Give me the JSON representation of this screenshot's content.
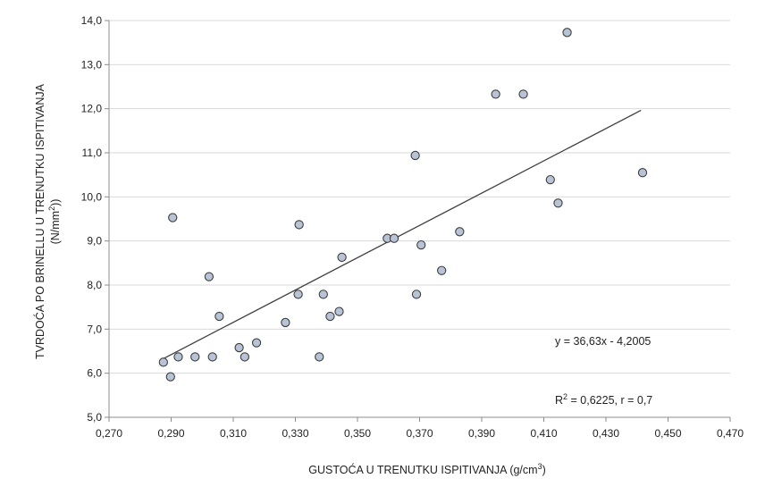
{
  "chart_data": {
    "type": "scatter",
    "title": "",
    "xlabel_main": "GUSTOĆA U TRENUTKU  ISPITIVANJA",
    "xlabel_unit_pre": "(g/cm",
    "xlabel_unit_sup": "3",
    "xlabel_unit_post": ")",
    "ylabel_line1": "TVRDOĆA PO BRINELLU U TRENUTKU  ISPITIVANJA",
    "ylabel_line2_pre": "(N/mm",
    "ylabel_line2_sup": "2",
    "ylabel_line2_post": "))",
    "xlim": [
      0.27,
      0.47
    ],
    "ylim": [
      5.0,
      14.0
    ],
    "x_ticks": [
      0.27,
      0.29,
      0.31,
      0.33,
      0.35,
      0.37,
      0.39,
      0.41,
      0.43,
      0.45,
      0.47
    ],
    "x_tick_labels": [
      "0,270",
      "0,290",
      "0,310",
      "0,330",
      "0,350",
      "0,370",
      "0,390",
      "0,410",
      "0,430",
      "0,450",
      "0,470"
    ],
    "y_ticks": [
      5.0,
      6.0,
      7.0,
      8.0,
      9.0,
      10.0,
      11.0,
      12.0,
      13.0,
      14.0
    ],
    "y_tick_labels": [
      "5,0",
      "6,0",
      "7,0",
      "8,0",
      "9,0",
      "10,0",
      "11,0",
      "12,0",
      "13,0",
      "14,0"
    ],
    "grid": "horizontal",
    "colors": {
      "marker_fill": "#b8c4d6",
      "marker_stroke": "#3d3d3d",
      "trendline": "#404040",
      "grid": "#d9d9d9",
      "axis": "#8c8c8c"
    },
    "points": [
      {
        "x": 0.2875,
        "y": 6.25
      },
      {
        "x": 0.2898,
        "y": 5.92
      },
      {
        "x": 0.2905,
        "y": 9.53
      },
      {
        "x": 0.2923,
        "y": 6.37
      },
      {
        "x": 0.2977,
        "y": 6.37
      },
      {
        "x": 0.3022,
        "y": 8.19
      },
      {
        "x": 0.3033,
        "y": 6.37
      },
      {
        "x": 0.3055,
        "y": 7.29
      },
      {
        "x": 0.3119,
        "y": 6.58
      },
      {
        "x": 0.3137,
        "y": 6.37
      },
      {
        "x": 0.3175,
        "y": 6.69
      },
      {
        "x": 0.3268,
        "y": 7.15
      },
      {
        "x": 0.3309,
        "y": 7.79
      },
      {
        "x": 0.3312,
        "y": 9.37
      },
      {
        "x": 0.3377,
        "y": 6.37
      },
      {
        "x": 0.339,
        "y": 7.79
      },
      {
        "x": 0.3412,
        "y": 7.29
      },
      {
        "x": 0.3441,
        "y": 7.4
      },
      {
        "x": 0.345,
        "y": 8.63
      },
      {
        "x": 0.3596,
        "y": 9.06
      },
      {
        "x": 0.3618,
        "y": 9.06
      },
      {
        "x": 0.3686,
        "y": 10.94
      },
      {
        "x": 0.369,
        "y": 7.79
      },
      {
        "x": 0.3705,
        "y": 8.91
      },
      {
        "x": 0.3771,
        "y": 8.33
      },
      {
        "x": 0.3829,
        "y": 9.21
      },
      {
        "x": 0.3945,
        "y": 12.33
      },
      {
        "x": 0.4034,
        "y": 12.33
      },
      {
        "x": 0.4121,
        "y": 10.39
      },
      {
        "x": 0.4146,
        "y": 9.86
      },
      {
        "x": 0.4175,
        "y": 13.73
      },
      {
        "x": 0.4418,
        "y": 10.55
      }
    ],
    "trendline": {
      "slope": 36.63,
      "intercept": -4.2005,
      "x_range": [
        0.2865,
        0.4413
      ]
    },
    "annotations": {
      "equation": "y = 36,63x - 4,2005",
      "r2_prefix": "R",
      "r2_sup": "2",
      "r2_suffix": " = 0,6225, r = 0,7"
    }
  }
}
